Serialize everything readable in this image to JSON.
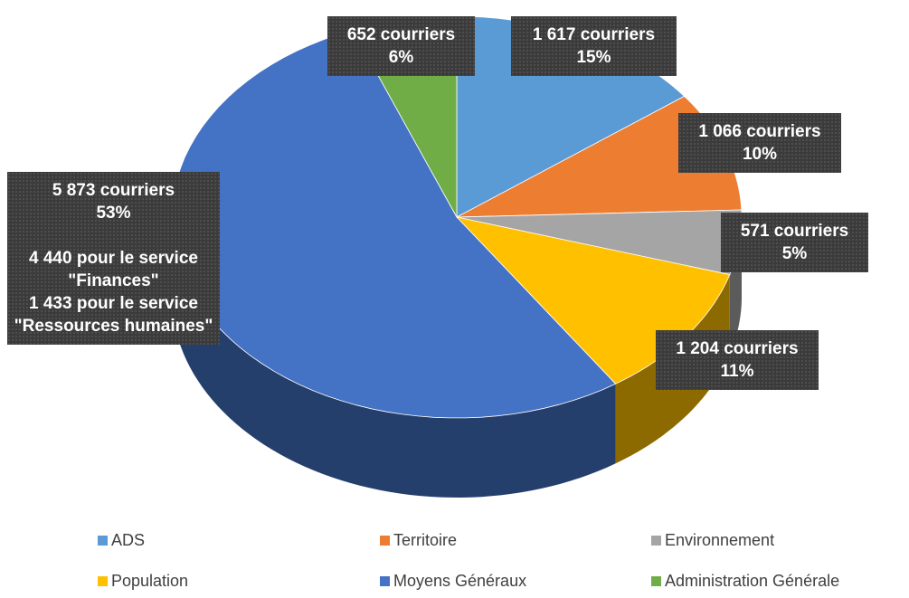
{
  "chart_data": {
    "type": "pie",
    "categories": [
      "ADS",
      "Territoire",
      "Environnement",
      "Population",
      "Moyens Généraux",
      "Administration Générale"
    ],
    "values": [
      1617,
      1066,
      571,
      1204,
      5873,
      652
    ],
    "value_labels": [
      "1 617 courriers",
      "1 066 courriers",
      "571 courriers",
      "1 204 courriers",
      "5 873 courriers",
      "652 courriers"
    ],
    "percent_labels": [
      "15%",
      "10%",
      "5%",
      "11%",
      "53%",
      "6%"
    ],
    "colors": [
      "#5b9bd5",
      "#ed7d31",
      "#a5a5a5",
      "#ffc000",
      "#4472c4",
      "#70ad47"
    ],
    "annotations": [
      "4 440 pour le service \"Finances\"",
      "1 433 pour le service \"Ressources humaines\""
    ],
    "legend": "bottom"
  }
}
